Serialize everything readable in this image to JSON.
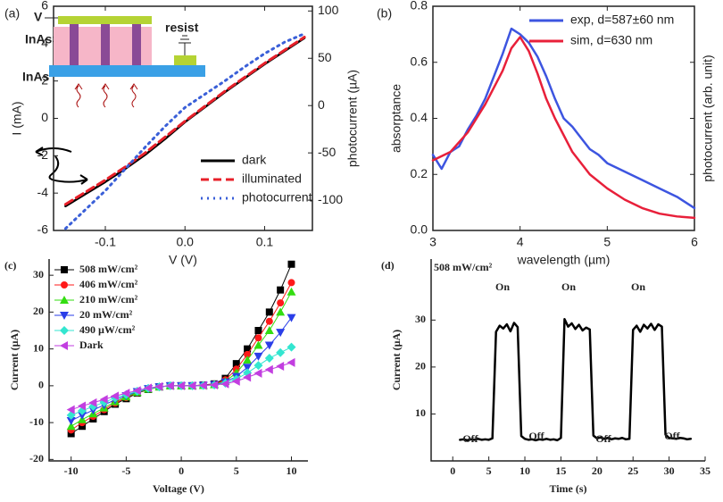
{
  "chart_data": [
    {
      "type": "line",
      "panel_label": "(a)",
      "xlabel": "V (V)",
      "ylabel": "I (mA)",
      "y2label": "photocurrent (µA)",
      "frame": "box",
      "x": [
        -0.15,
        -0.125,
        -0.1,
        -0.075,
        -0.05,
        -0.025,
        0,
        0.025,
        0.05,
        0.075,
        0.1,
        0.125,
        0.15
      ],
      "xlim": [
        -0.165,
        0.16
      ],
      "xticks": [
        -0.1,
        {
          "value": 0,
          "label": "0.0"
        },
        0.1
      ],
      "ylim": [
        -6,
        6
      ],
      "yticks": [
        -6,
        -4,
        -2,
        0,
        2,
        4,
        6
      ],
      "y2lim": [
        -132,
        105
      ],
      "y2ticks": [
        -100,
        -50,
        0,
        50,
        100
      ],
      "legend": "lower right",
      "series": [
        {
          "name": "dark",
          "color": "#000000",
          "linestyle": "solid",
          "values": [
            -4.7,
            -4.05,
            -3.4,
            -2.7,
            -1.95,
            -1.1,
            -0.2,
            0.6,
            1.4,
            2.15,
            2.9,
            3.6,
            4.3
          ]
        },
        {
          "name": "illuminated",
          "color": "#e8202a",
          "linestyle": "dashed",
          "values": [
            -4.6,
            -3.95,
            -3.3,
            -2.6,
            -1.85,
            -1.0,
            -0.15,
            0.65,
            1.45,
            2.2,
            2.95,
            3.65,
            4.35
          ]
        },
        {
          "name": "photocurrent",
          "color": "#3a5fd8",
          "linestyle": "dotted",
          "axis": "y2",
          "values": [
            -130,
            -110,
            -90,
            -67,
            -44,
            -22,
            -2,
            12,
            26,
            41,
            55,
            67,
            76
          ]
        }
      ],
      "inset_labels": [
        "V",
        "InAsSb",
        "resist",
        "InAs"
      ]
    },
    {
      "type": "line",
      "panel_label": "(b)",
      "xlabel": "wavelength (µm)",
      "ylabel": "absorptance",
      "ylabel_color": "#e8203a",
      "y2label": "photocurrent (arb. unit)",
      "y2label_color": "#3d55e0",
      "frame": "box",
      "xlim": [
        3,
        6
      ],
      "xticks": [
        3,
        4,
        5,
        6
      ],
      "ylim": [
        0,
        0.8
      ],
      "yticks": [
        {
          "value": 0,
          "label": "0.0"
        },
        0.2,
        0.4,
        0.6,
        0.8
      ],
      "legend": "upper right",
      "series": [
        {
          "name": "exp, d=587±60 nm",
          "color": "#3d55e0",
          "linestyle": "solid",
          "x": [
            3.0,
            3.1,
            3.2,
            3.3,
            3.4,
            3.5,
            3.6,
            3.7,
            3.8,
            3.9,
            4.0,
            4.1,
            4.2,
            4.3,
            4.4,
            4.5,
            4.6,
            4.7,
            4.8,
            4.9,
            5.0,
            5.2,
            5.4,
            5.6,
            5.8,
            6.0
          ],
          "values": [
            0.27,
            0.22,
            0.28,
            0.3,
            0.36,
            0.41,
            0.47,
            0.55,
            0.63,
            0.72,
            0.7,
            0.67,
            0.62,
            0.55,
            0.47,
            0.4,
            0.37,
            0.33,
            0.29,
            0.27,
            0.24,
            0.21,
            0.18,
            0.15,
            0.12,
            0.08
          ]
        },
        {
          "name": "sim, d=630 nm",
          "color": "#e8203a",
          "linestyle": "solid",
          "x": [
            3.0,
            3.2,
            3.4,
            3.6,
            3.8,
            3.9,
            4.0,
            4.1,
            4.2,
            4.3,
            4.4,
            4.6,
            4.8,
            5.0,
            5.2,
            5.4,
            5.6,
            5.8,
            6.0
          ],
          "values": [
            0.25,
            0.28,
            0.35,
            0.45,
            0.57,
            0.65,
            0.69,
            0.64,
            0.56,
            0.47,
            0.4,
            0.28,
            0.2,
            0.15,
            0.11,
            0.08,
            0.06,
            0.05,
            0.045
          ]
        }
      ]
    },
    {
      "type": "line",
      "panel_label": "(c)",
      "xlabel": "Voltage (V)",
      "ylabel": "Current (µA)",
      "frame": "open",
      "x": [
        -10,
        -9,
        -8,
        -7,
        -6,
        -5,
        -4,
        -3,
        -2,
        -1,
        0,
        1,
        2,
        3,
        4,
        5,
        6,
        7,
        8,
        9,
        10
      ],
      "xlim": [
        -12,
        11.5
      ],
      "xticks": [
        -10,
        -5,
        0,
        5,
        10
      ],
      "ylim": [
        -20.4,
        34.4
      ],
      "yticks": [
        -20,
        -10,
        0,
        10,
        20,
        30
      ],
      "legend": "upper left",
      "series": [
        {
          "name": "508 mW/cm²",
          "color": "#000000",
          "marker": "square",
          "values": [
            -13,
            -11,
            -9,
            -7,
            -5,
            -3.5,
            -2,
            -1,
            -0.3,
            0,
            0,
            0,
            0.2,
            0.5,
            2,
            6,
            10,
            15,
            20,
            26,
            33
          ]
        },
        {
          "name": "406 mW/cm²",
          "color": "#ff1a1a",
          "marker": "circle",
          "values": [
            -12,
            -10,
            -8.3,
            -6.5,
            -4.7,
            -3.2,
            -1.9,
            -0.9,
            -0.3,
            0,
            0,
            0,
            0.2,
            0.4,
            1.6,
            4.5,
            8.5,
            13,
            17.5,
            22.5,
            28
          ]
        },
        {
          "name": "210 mW/cm²",
          "color": "#33dd11",
          "marker": "triangle-up",
          "values": [
            -11,
            -9.2,
            -7.6,
            -6,
            -4.3,
            -3,
            -1.8,
            -0.9,
            -0.3,
            0,
            0,
            0,
            0.1,
            0.3,
            1.2,
            3.5,
            7,
            11,
            15,
            20,
            25.5
          ]
        },
        {
          "name": "20 mW/cm²",
          "color": "#2a3ee8",
          "marker": "triangle-down",
          "values": [
            -9.5,
            -8,
            -6.6,
            -5.2,
            -3.8,
            -2.7,
            -1.6,
            -0.8,
            -0.3,
            0,
            0,
            0,
            0.1,
            0.3,
            1,
            2.5,
            5,
            8,
            11,
            14.5,
            18.5
          ]
        },
        {
          "name": "490 µW/cm²",
          "color": "#33e6d0",
          "marker": "diamond",
          "values": [
            -8,
            -6.8,
            -5.6,
            -4.5,
            -3.3,
            -2.4,
            -1.5,
            -0.7,
            -0.3,
            0,
            0,
            0,
            0.1,
            0.2,
            0.7,
            1.8,
            3.5,
            5.5,
            7.5,
            9,
            10.5
          ]
        },
        {
          "name": "Dark",
          "color": "#c23ee0",
          "marker": "triangle-left",
          "values": [
            -6.5,
            -5.5,
            -4.6,
            -3.7,
            -2.8,
            -2,
            -1.3,
            -0.6,
            -0.2,
            0,
            0,
            0,
            0.1,
            0.2,
            0.5,
            1.2,
            2.3,
            3.4,
            4.4,
            5.3,
            6.3
          ]
        }
      ]
    },
    {
      "type": "line",
      "panel_label": "(d)",
      "title": "508 mW/cm²",
      "title_color": "#ee2233",
      "xlabel": "Time (s)",
      "ylabel": "Current (µA)",
      "frame": "open",
      "x": [
        1,
        1.5,
        2,
        2.5,
        3,
        3.5,
        4,
        4.5,
        5,
        5.5,
        6,
        6.5,
        7,
        7.5,
        8,
        8.5,
        9,
        9.5,
        10,
        10.5,
        11,
        11.5,
        12,
        12.5,
        13,
        13.5,
        14,
        14.5,
        15,
        15.5,
        16,
        16.5,
        17,
        17.5,
        18,
        18.5,
        19,
        19.5,
        20,
        20.5,
        21,
        21.5,
        22,
        22.5,
        23,
        23.5,
        24,
        24.5,
        25,
        25.5,
        26,
        26.5,
        27,
        27.5,
        28,
        28.5,
        29,
        29.5,
        30,
        30.5,
        31,
        31.5,
        32,
        32.5,
        33
      ],
      "xlim": [
        -3,
        35
      ],
      "xticks": [
        0,
        5,
        10,
        15,
        20,
        25,
        30,
        35
      ],
      "ylim": [
        0,
        43
      ],
      "yticks": [
        10,
        20,
        30
      ],
      "series": [
        {
          "color": "#000000",
          "linestyle": "solid",
          "values": [
            4.5,
            4.6,
            4.4,
            4.6,
            4.5,
            4.7,
            4.5,
            4.6,
            4.5,
            4.8,
            27.5,
            28.8,
            28.2,
            29.1,
            27.6,
            29.4,
            28.5,
            5.3,
            4.7,
            4.5,
            4.6,
            4.4,
            4.6,
            4.5,
            4.7,
            4.5,
            4.6,
            4.4,
            4.9,
            30.2,
            28.6,
            29.3,
            28.1,
            29.0,
            27.8,
            28.4,
            28.0,
            5.4,
            4.8,
            5.0,
            4.7,
            4.9,
            4.6,
            4.8,
            4.7,
            4.9,
            4.6,
            4.7,
            27.9,
            28.8,
            27.5,
            29.0,
            28.2,
            29.2,
            27.9,
            29.1,
            28.6,
            5.6,
            4.9,
            4.8,
            4.7,
            4.9,
            4.8,
            4.6,
            4.7
          ]
        }
      ],
      "annotations": [
        "Off",
        "On",
        "Off",
        "On",
        "Off",
        "On",
        "Off"
      ],
      "annotation_color": "#3344dd"
    }
  ]
}
